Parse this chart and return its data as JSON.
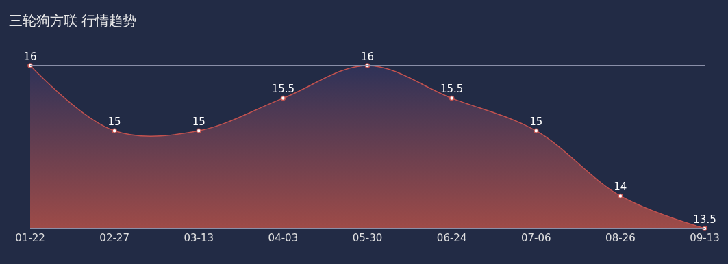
{
  "chart_data": {
    "type": "area",
    "title": "三轮狗方联 行情趋势",
    "categories": [
      "01-22",
      "02-27",
      "03-13",
      "04-03",
      "05-30",
      "06-24",
      "07-06",
      "08-26",
      "09-13"
    ],
    "series": [
      {
        "color": "#c2524f",
        "values": [
          16,
          15,
          15,
          15.5,
          16,
          15.5,
          15,
          14,
          13.5
        ]
      }
    ],
    "ylim": [
      13.5,
      16
    ],
    "yticks": [
      {
        "value": 13.5,
        "label": null
      },
      {
        "value": 14,
        "label": null
      },
      {
        "value": 14.5,
        "label": null
      },
      {
        "value": 15,
        "label": null
      },
      {
        "value": 15.5,
        "label": null
      },
      {
        "value": 16,
        "label": null
      }
    ],
    "tick_labels": "x",
    "grid": "y",
    "data_labels": true,
    "marker": "circle",
    "legend": false
  }
}
